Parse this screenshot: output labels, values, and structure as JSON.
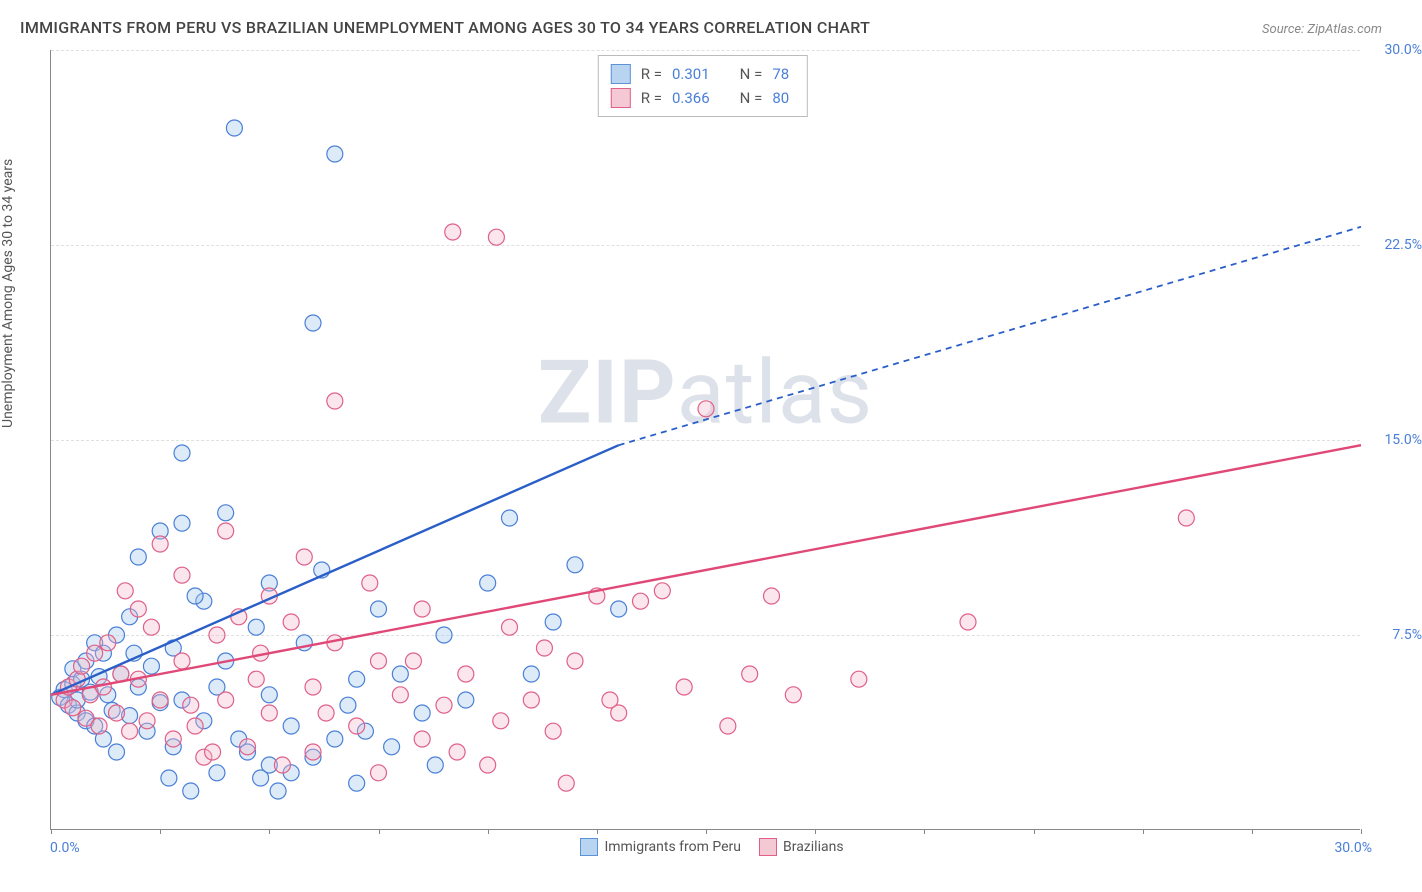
{
  "title": "IMMIGRANTS FROM PERU VS BRAZILIAN UNEMPLOYMENT AMONG AGES 30 TO 34 YEARS CORRELATION CHART",
  "source": "Source: ZipAtlas.com",
  "watermark_a": "ZIP",
  "watermark_b": "atlas",
  "chart": {
    "type": "scatter",
    "xlim": [
      0,
      30
    ],
    "ylim": [
      0,
      30
    ],
    "y_ticks": [
      7.5,
      15.0,
      22.5,
      30.0
    ],
    "y_tick_labels": [
      "7.5%",
      "15.0%",
      "22.5%",
      "30.0%"
    ],
    "x_min_label": "0.0%",
    "x_max_label": "30.0%",
    "y_axis_label": "Unemployment Among Ages 30 to 34 years",
    "grid_color": "#e0e0e0",
    "axis_color": "#888888",
    "tick_color": "#4a7fd8",
    "background_color": "#ffffff",
    "marker_radius": 8,
    "marker_stroke_width": 1.2,
    "marker_fill_opacity": 0.35,
    "trend_line_width": 2.4,
    "x_tick_positions": [
      0,
      2.5,
      5,
      7.5,
      10,
      12.5,
      15,
      17.5,
      20,
      22.5,
      25,
      27.5,
      30
    ]
  },
  "legend_top": {
    "rows": [
      {
        "swatch_fill": "#b8d4f0",
        "swatch_stroke": "#5a93d8",
        "r_label": "R =",
        "r_value": "0.301",
        "n_label": "N =",
        "n_value": "78"
      },
      {
        "swatch_fill": "#f5c8d6",
        "swatch_stroke": "#e06088",
        "r_label": "R =",
        "r_value": "0.366",
        "n_label": "N =",
        "n_value": "80"
      }
    ]
  },
  "legend_bottom": [
    {
      "swatch_fill": "#b8d4f0",
      "swatch_stroke": "#5a93d8",
      "label": "Immigrants from Peru"
    },
    {
      "swatch_fill": "#f5c8d6",
      "swatch_stroke": "#e06088",
      "label": "Brazilians"
    }
  ],
  "series": [
    {
      "name": "Immigrants from Peru",
      "color_fill": "#9fc5ec",
      "color_stroke": "#4a7fd8",
      "trend_color": "#2a5fc8",
      "trend": {
        "x1": 0,
        "y1": 5.2,
        "x2": 13,
        "y2": 14.8,
        "dash_to_x": 30,
        "dash_to_y": 23.2
      },
      "points": [
        [
          0.2,
          5.1
        ],
        [
          0.3,
          5.4
        ],
        [
          0.4,
          4.8
        ],
        [
          0.5,
          5.6
        ],
        [
          0.5,
          6.2
        ],
        [
          0.6,
          4.5
        ],
        [
          0.6,
          5.0
        ],
        [
          0.7,
          5.8
        ],
        [
          0.8,
          6.5
        ],
        [
          0.8,
          4.2
        ],
        [
          0.9,
          5.3
        ],
        [
          1.0,
          7.2
        ],
        [
          1.0,
          4.0
        ],
        [
          1.1,
          5.9
        ],
        [
          1.2,
          6.8
        ],
        [
          1.2,
          3.5
        ],
        [
          1.3,
          5.2
        ],
        [
          1.4,
          4.6
        ],
        [
          1.5,
          7.5
        ],
        [
          1.5,
          3.0
        ],
        [
          1.6,
          6.0
        ],
        [
          1.8,
          8.2
        ],
        [
          1.8,
          4.4
        ],
        [
          2.0,
          5.5
        ],
        [
          2.0,
          10.5
        ],
        [
          2.2,
          3.8
        ],
        [
          2.3,
          6.3
        ],
        [
          2.5,
          11.5
        ],
        [
          2.5,
          4.9
        ],
        [
          2.7,
          2.0
        ],
        [
          2.8,
          7.0
        ],
        [
          3.0,
          11.8
        ],
        [
          3.0,
          5.0
        ],
        [
          3.0,
          14.5
        ],
        [
          3.2,
          1.5
        ],
        [
          3.5,
          8.8
        ],
        [
          3.5,
          4.2
        ],
        [
          3.8,
          2.2
        ],
        [
          4.0,
          6.5
        ],
        [
          4.0,
          12.2
        ],
        [
          4.2,
          27.0
        ],
        [
          4.5,
          3.0
        ],
        [
          4.7,
          7.8
        ],
        [
          5.0,
          5.2
        ],
        [
          5.0,
          9.5
        ],
        [
          5.0,
          2.5
        ],
        [
          5.2,
          1.5
        ],
        [
          5.5,
          4.0
        ],
        [
          5.8,
          7.2
        ],
        [
          6.0,
          2.8
        ],
        [
          6.0,
          19.5
        ],
        [
          6.2,
          10.0
        ],
        [
          6.5,
          26.0
        ],
        [
          6.5,
          3.5
        ],
        [
          7.0,
          5.8
        ],
        [
          7.0,
          1.8
        ],
        [
          7.5,
          8.5
        ],
        [
          7.8,
          3.2
        ],
        [
          8.0,
          6.0
        ],
        [
          8.5,
          4.5
        ],
        [
          9.0,
          7.5
        ],
        [
          10.0,
          9.5
        ],
        [
          10.5,
          12.0
        ],
        [
          11.0,
          6.0
        ],
        [
          11.5,
          8.0
        ],
        [
          12.0,
          10.2
        ],
        [
          13.0,
          8.5
        ],
        [
          4.8,
          2.0
        ],
        [
          3.8,
          5.5
        ],
        [
          6.8,
          4.8
        ],
        [
          2.8,
          3.2
        ],
        [
          1.9,
          6.8
        ],
        [
          5.5,
          2.2
        ],
        [
          7.2,
          3.8
        ],
        [
          8.8,
          2.5
        ],
        [
          9.5,
          5.0
        ],
        [
          3.3,
          9.0
        ],
        [
          4.3,
          3.5
        ]
      ]
    },
    {
      "name": "Brazilians",
      "color_fill": "#f0b8c8",
      "color_stroke": "#e06088",
      "trend_color": "#e04878",
      "trend": {
        "x1": 0,
        "y1": 5.2,
        "x2": 30,
        "y2": 14.8
      },
      "points": [
        [
          0.3,
          5.0
        ],
        [
          0.4,
          5.5
        ],
        [
          0.5,
          4.7
        ],
        [
          0.6,
          5.8
        ],
        [
          0.7,
          6.3
        ],
        [
          0.8,
          4.3
        ],
        [
          0.9,
          5.2
        ],
        [
          1.0,
          6.8
        ],
        [
          1.1,
          4.0
        ],
        [
          1.2,
          5.5
        ],
        [
          1.3,
          7.2
        ],
        [
          1.5,
          4.5
        ],
        [
          1.6,
          6.0
        ],
        [
          1.8,
          3.8
        ],
        [
          2.0,
          5.8
        ],
        [
          2.0,
          8.5
        ],
        [
          2.2,
          4.2
        ],
        [
          2.5,
          11.0
        ],
        [
          2.5,
          5.0
        ],
        [
          2.8,
          3.5
        ],
        [
          3.0,
          6.5
        ],
        [
          3.0,
          9.8
        ],
        [
          3.2,
          4.8
        ],
        [
          3.5,
          2.8
        ],
        [
          3.8,
          7.5
        ],
        [
          4.0,
          5.0
        ],
        [
          4.0,
          11.5
        ],
        [
          4.5,
          3.2
        ],
        [
          4.8,
          6.8
        ],
        [
          5.0,
          4.5
        ],
        [
          5.0,
          9.0
        ],
        [
          5.3,
          2.5
        ],
        [
          5.5,
          8.0
        ],
        [
          6.0,
          5.5
        ],
        [
          6.0,
          3.0
        ],
        [
          6.5,
          7.2
        ],
        [
          6.5,
          16.5
        ],
        [
          7.0,
          4.0
        ],
        [
          7.5,
          6.5
        ],
        [
          7.5,
          2.2
        ],
        [
          8.0,
          5.2
        ],
        [
          8.5,
          8.5
        ],
        [
          8.5,
          3.5
        ],
        [
          9.0,
          4.8
        ],
        [
          9.2,
          23.0
        ],
        [
          9.5,
          6.0
        ],
        [
          10.0,
          2.5
        ],
        [
          10.2,
          22.8
        ],
        [
          10.5,
          7.8
        ],
        [
          11.0,
          5.0
        ],
        [
          11.5,
          3.8
        ],
        [
          11.8,
          1.8
        ],
        [
          12.0,
          6.5
        ],
        [
          12.5,
          9.0
        ],
        [
          13.0,
          4.5
        ],
        [
          13.5,
          8.8
        ],
        [
          14.0,
          9.2
        ],
        [
          14.5,
          5.5
        ],
        [
          15.0,
          16.2
        ],
        [
          15.5,
          4.0
        ],
        [
          16.0,
          6.0
        ],
        [
          16.5,
          9.0
        ],
        [
          17.0,
          5.2
        ],
        [
          18.5,
          5.8
        ],
        [
          21.0,
          8.0
        ],
        [
          26.0,
          12.0
        ],
        [
          2.3,
          7.8
        ],
        [
          3.3,
          4.0
        ],
        [
          4.3,
          8.2
        ],
        [
          1.7,
          9.2
        ],
        [
          5.8,
          10.5
        ],
        [
          6.3,
          4.5
        ],
        [
          7.3,
          9.5
        ],
        [
          8.3,
          6.5
        ],
        [
          9.3,
          3.0
        ],
        [
          10.3,
          4.2
        ],
        [
          11.3,
          7.0
        ],
        [
          3.7,
          3.0
        ],
        [
          4.7,
          5.8
        ],
        [
          12.8,
          5.0
        ]
      ]
    }
  ]
}
